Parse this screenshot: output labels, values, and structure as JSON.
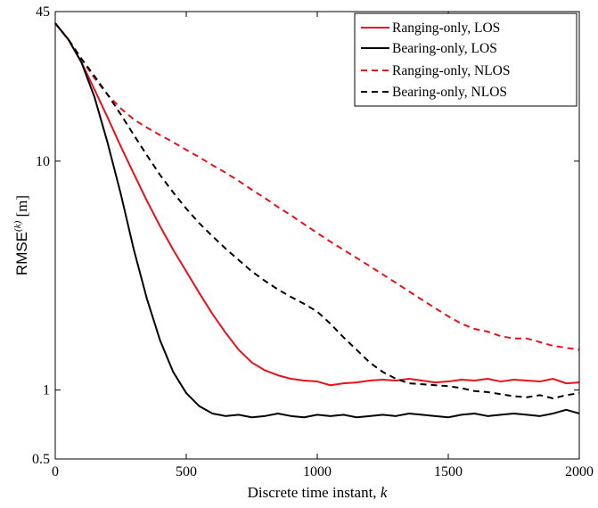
{
  "chart_data": {
    "type": "line",
    "xlabel": "Discrete time instant, ",
    "xlabel_var": "k",
    "ylabel_main": "RMSE",
    "ylabel_sup": "(k)",
    "ylabel_unit": " [m]",
    "xlim": [
      0,
      2000
    ],
    "ylim": [
      0.5,
      45
    ],
    "yscale": "log",
    "xticks": [
      0,
      500,
      1000,
      1500,
      2000
    ],
    "xtick_labels": [
      "0",
      "500",
      "1000",
      "1500",
      "2000"
    ],
    "yticks": [
      0.5,
      1,
      10,
      45
    ],
    "ytick_labels": [
      "0.5",
      "1",
      "10",
      "45"
    ],
    "grid": false,
    "legend_position": "top-right",
    "series": [
      {
        "name": "Ranging-only, LOS",
        "color": "#e8101a",
        "dash": "solid",
        "x": [
          0,
          50,
          100,
          150,
          200,
          250,
          300,
          350,
          400,
          450,
          500,
          550,
          600,
          650,
          700,
          750,
          800,
          850,
          900,
          950,
          1000,
          1050,
          1100,
          1150,
          1200,
          1250,
          1300,
          1350,
          1400,
          1450,
          1500,
          1550,
          1600,
          1650,
          1700,
          1750,
          1800,
          1850,
          1900,
          1950,
          2000
        ],
        "y": [
          40,
          34,
          27,
          20.5,
          15.5,
          11.6,
          8.8,
          6.7,
          5.2,
          4.1,
          3.3,
          2.65,
          2.15,
          1.78,
          1.5,
          1.32,
          1.22,
          1.16,
          1.12,
          1.1,
          1.09,
          1.05,
          1.07,
          1.08,
          1.1,
          1.11,
          1.1,
          1.12,
          1.1,
          1.08,
          1.09,
          1.11,
          1.1,
          1.12,
          1.09,
          1.11,
          1.1,
          1.09,
          1.12,
          1.07,
          1.08
        ]
      },
      {
        "name": "Bearing-only, LOS",
        "color": "#000000",
        "dash": "solid",
        "x": [
          0,
          50,
          100,
          150,
          200,
          250,
          300,
          350,
          400,
          450,
          500,
          550,
          600,
          625,
          650,
          700,
          750,
          800,
          850,
          900,
          950,
          1000,
          1050,
          1100,
          1150,
          1200,
          1250,
          1300,
          1350,
          1400,
          1450,
          1500,
          1550,
          1600,
          1650,
          1700,
          1750,
          1800,
          1850,
          1900,
          1950,
          2000
        ],
        "y": [
          40,
          34,
          27,
          19,
          12,
          7.2,
          4.1,
          2.5,
          1.65,
          1.2,
          0.97,
          0.85,
          0.79,
          0.78,
          0.77,
          0.78,
          0.76,
          0.77,
          0.79,
          0.77,
          0.76,
          0.78,
          0.77,
          0.78,
          0.76,
          0.77,
          0.78,
          0.77,
          0.79,
          0.78,
          0.77,
          0.76,
          0.78,
          0.79,
          0.77,
          0.78,
          0.79,
          0.78,
          0.77,
          0.79,
          0.82,
          0.79
        ]
      },
      {
        "name": "Ranging-only, NLOS",
        "color": "#e8101a",
        "dash": "dashed",
        "x": [
          0,
          50,
          100,
          150,
          200,
          250,
          300,
          350,
          400,
          450,
          500,
          550,
          600,
          650,
          700,
          750,
          800,
          850,
          900,
          950,
          1000,
          1050,
          1100,
          1150,
          1200,
          1250,
          1300,
          1350,
          1400,
          1450,
          1500,
          1550,
          1600,
          1650,
          1700,
          1750,
          1800,
          1850,
          1900,
          1950,
          2000
        ],
        "y": [
          40,
          34,
          28,
          23,
          19.5,
          17,
          15.2,
          14,
          13,
          12.1,
          11.2,
          10.4,
          9.6,
          8.9,
          8.2,
          7.5,
          6.9,
          6.3,
          5.8,
          5.3,
          4.85,
          4.45,
          4.1,
          3.78,
          3.48,
          3.2,
          2.94,
          2.7,
          2.48,
          2.28,
          2.1,
          1.95,
          1.85,
          1.8,
          1.72,
          1.68,
          1.68,
          1.62,
          1.56,
          1.53,
          1.5
        ]
      },
      {
        "name": "Bearing-only, NLOS",
        "color": "#000000",
        "dash": "dashed",
        "x": [
          0,
          50,
          100,
          150,
          200,
          250,
          300,
          350,
          400,
          450,
          500,
          550,
          600,
          650,
          700,
          750,
          800,
          850,
          900,
          950,
          1000,
          1050,
          1100,
          1150,
          1200,
          1250,
          1300,
          1350,
          1400,
          1450,
          1500,
          1550,
          1600,
          1650,
          1700,
          1750,
          1800,
          1850,
          1900,
          1950,
          2000
        ],
        "y": [
          40,
          34,
          28,
          23.5,
          19.5,
          16,
          13,
          10.6,
          8.7,
          7.3,
          6.2,
          5.35,
          4.7,
          4.15,
          3.7,
          3.3,
          3.0,
          2.75,
          2.55,
          2.38,
          2.2,
          1.95,
          1.7,
          1.5,
          1.32,
          1.2,
          1.12,
          1.07,
          1.06,
          1.05,
          1.04,
          1.02,
          0.99,
          0.98,
          0.96,
          0.94,
          0.93,
          0.95,
          0.92,
          0.95,
          0.97
        ]
      }
    ]
  }
}
